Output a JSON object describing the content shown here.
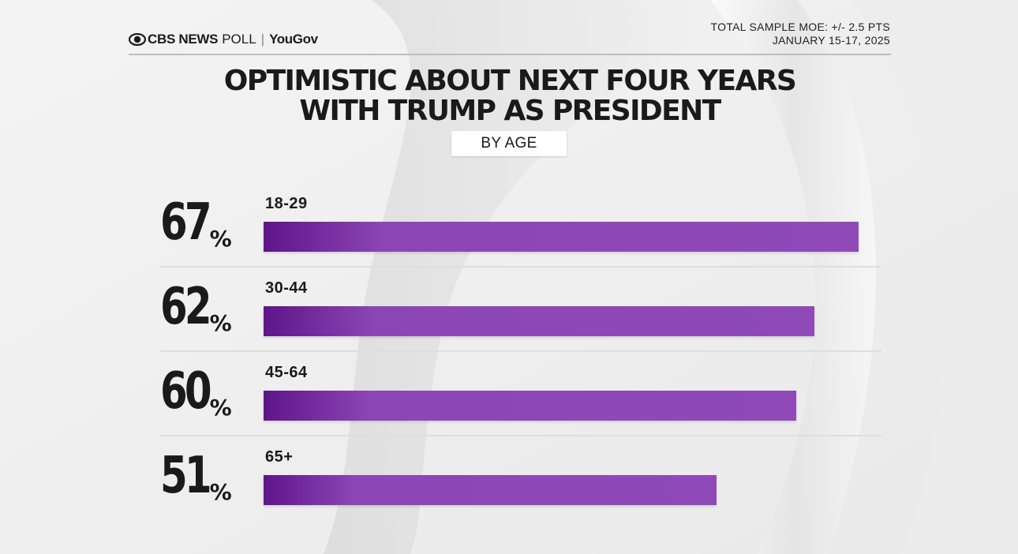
{
  "header": {
    "brand": "CBS NEWS",
    "poll": "POLL",
    "separator": "|",
    "partner": "YouGov",
    "moe": "TOTAL SAMPLE MOE: +/- 2.5 PTS",
    "dates": "JANUARY 15-17, 2025"
  },
  "chart_data": {
    "type": "bar",
    "orientation": "horizontal",
    "title": "OPTIMISTIC ABOUT NEXT FOUR YEARS WITH TRUMP AS PRESIDENT",
    "title_lines": [
      "OPTIMISTIC ABOUT NEXT FOUR YEARS",
      "WITH TRUMP AS PRESIDENT"
    ],
    "subtitle": "BY AGE",
    "categories": [
      "18-29",
      "30-44",
      "45-64",
      "65+"
    ],
    "values": [
      67,
      62,
      60,
      51
    ],
    "value_labels": [
      "67",
      "62",
      "60",
      "51"
    ],
    "unit": "%",
    "xlim": [
      0,
      67
    ],
    "bar_color": "#8c45b5",
    "bar_color_dark": "#5e1589",
    "legend": "none",
    "grid": false
  }
}
